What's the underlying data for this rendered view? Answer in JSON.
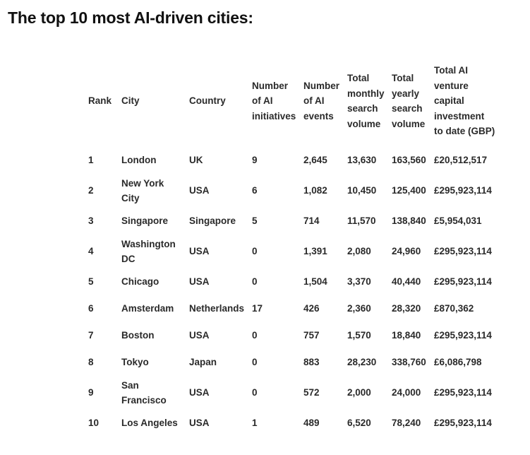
{
  "page": {
    "title": "The top 10 most AI-driven cities:"
  },
  "table": {
    "headers": [
      "Rank",
      "City",
      "Country",
      "Number\nof AI\ninitiatives",
      "Number\nof AI\nevents",
      "Total\nmonthly\nsearch\nvolume",
      "Total\nyearly\nsearch\nvolume",
      "Total AI\nventure\ncapital\ninvestment\nto date (GBP)"
    ],
    "rows": [
      [
        "1",
        "London",
        "UK",
        "9",
        "2,645",
        "13,630",
        "163,560",
        "£20,512,517"
      ],
      [
        "2",
        "New York City",
        "USA",
        "6",
        "1,082",
        "10,450",
        "125,400",
        "£295,923,114"
      ],
      [
        "3",
        "Singapore",
        "Singapore",
        "5",
        "714",
        "11,570",
        "138,840",
        "£5,954,031"
      ],
      [
        "4",
        "Washington DC",
        "USA",
        "0",
        "1,391",
        "2,080",
        "24,960",
        "£295,923,114"
      ],
      [
        "5",
        "Chicago",
        "USA",
        "0",
        "1,504",
        "3,370",
        "40,440",
        "£295,923,114"
      ],
      [
        "6",
        "Amsterdam",
        "Netherlands",
        "17",
        "426",
        "2,360",
        "28,320",
        "£870,362"
      ],
      [
        "7",
        "Boston",
        "USA",
        "0",
        "757",
        "1,570",
        "18,840",
        "£295,923,114"
      ],
      [
        "8",
        "Tokyo",
        "Japan",
        "0",
        "883",
        "28,230",
        "338,760",
        "£6,086,798"
      ],
      [
        "9",
        "San Francisco",
        "USA",
        "0",
        "572",
        "2,000",
        "24,000",
        "£295,923,114"
      ],
      [
        "10",
        "Los Angeles",
        "USA",
        "1",
        "489",
        "6,520",
        "78,240",
        "£295,923,114"
      ]
    ]
  }
}
